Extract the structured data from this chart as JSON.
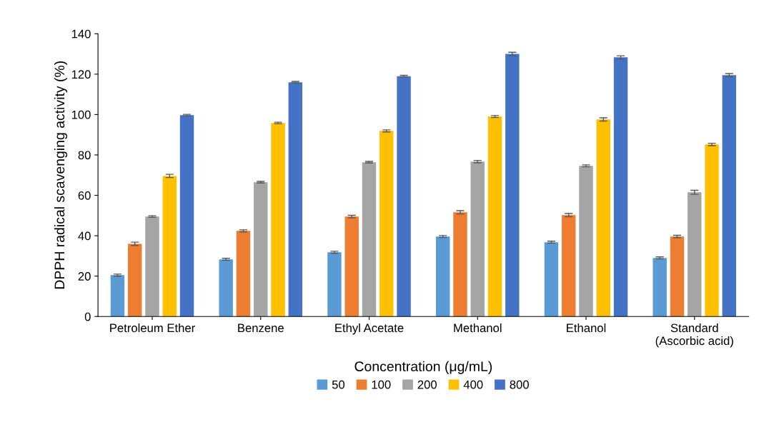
{
  "chart_data": {
    "type": "bar",
    "ylabel": "DPPH radical scavenging activity (%)",
    "legend_title": "Concentration (μg/mL)",
    "categories": [
      "Petroleum Ether",
      "Benzene",
      "Ethyl Acetate",
      "Methanol",
      "Ethanol",
      "Standard\n(Ascorbic acid)"
    ],
    "series": [
      {
        "name": "50",
        "color": "#5b9bd5",
        "values": [
          20.5,
          28.3,
          31.8,
          39.6,
          36.8,
          29
        ],
        "errors": [
          0.5,
          0.5,
          0.5,
          0.5,
          0.5,
          0.5
        ]
      },
      {
        "name": "100",
        "color": "#ed7d31",
        "values": [
          36,
          42.4,
          49.5,
          51.6,
          50.2,
          39.6
        ],
        "errors": [
          0.8,
          0.5,
          0.6,
          0.8,
          0.8,
          0.6
        ]
      },
      {
        "name": "200",
        "color": "#a5a5a5",
        "values": [
          49.5,
          66.5,
          76.4,
          76.7,
          74.6,
          61.5
        ],
        "errors": [
          0.4,
          0.4,
          0.4,
          0.6,
          0.5,
          1
        ]
      },
      {
        "name": "400",
        "color": "#ffc000",
        "values": [
          69.6,
          95.8,
          91.9,
          99,
          97.6,
          85.2
        ],
        "errors": [
          0.8,
          0.4,
          0.5,
          0.5,
          0.8,
          0.6
        ]
      },
      {
        "name": "800",
        "color": "#4472c4",
        "values": [
          99.7,
          116,
          119,
          130,
          128.3,
          119.5
        ],
        "errors": [
          0.4,
          0.4,
          0.4,
          0.8,
          0.8,
          0.8
        ]
      }
    ],
    "ylim": [
      0,
      140
    ],
    "yticks": [
      0,
      20,
      40,
      60,
      80,
      100,
      120,
      140
    ],
    "grid": false,
    "legend": "bottom"
  }
}
